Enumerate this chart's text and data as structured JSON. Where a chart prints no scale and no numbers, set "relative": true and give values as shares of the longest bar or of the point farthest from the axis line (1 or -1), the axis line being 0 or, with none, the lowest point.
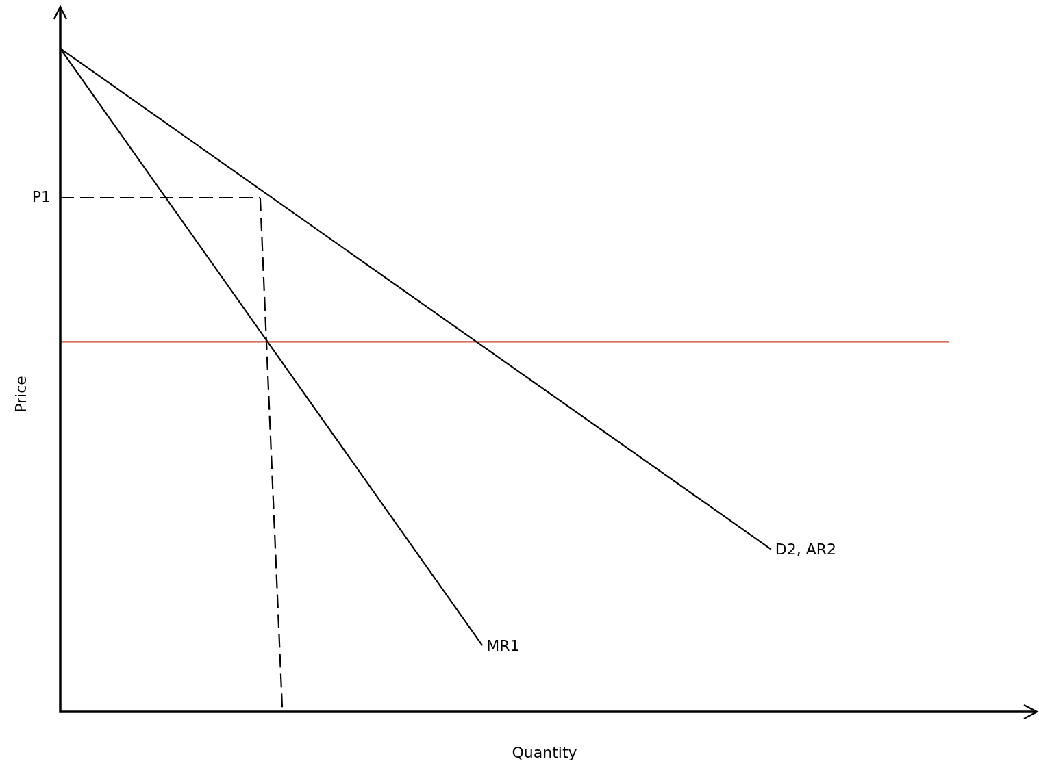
{
  "chart_data": {
    "type": "line",
    "relative": true,
    "xlabel": "Quantity",
    "ylabel": "Price",
    "grid": false,
    "legend": false,
    "marker": "none",
    "annotations": [
      "P1"
    ],
    "categories": [
      null,
      null,
      null,
      null,
      null,
      null,
      null,
      null,
      null,
      null,
      null,
      null,
      null,
      null,
      null,
      null,
      null,
      null,
      null,
      null,
      null,
      null,
      null,
      null,
      null,
      null,
      null,
      null,
      null,
      null,
      null,
      null,
      null,
      null,
      null,
      null,
      null,
      null,
      null,
      null,
      null
    ],
    "series": [
      {
        "name": "D2, AR2",
        "color": "#000000",
        "line_style": "solid",
        "values": [
          1,
          null,
          null,
          null,
          null,
          null,
          null,
          null,
          null,
          null,
          null,
          null,
          null,
          null,
          null,
          null,
          null,
          null,
          null,
          null,
          null,
          null,
          null,
          null,
          null,
          null,
          null,
          null,
          null,
          null,
          null,
          null,
          0.245,
          null,
          null,
          null,
          null,
          null,
          null,
          null,
          null
        ]
      },
      {
        "name": "MR1",
        "color": "#000000",
        "line_style": "solid",
        "values": [
          1,
          null,
          null,
          null,
          null,
          null,
          null,
          null,
          null,
          null,
          null,
          null,
          null,
          null,
          null,
          null,
          null,
          null,
          null,
          0.1,
          null,
          null,
          null,
          null,
          null,
          null,
          null,
          null,
          null,
          null,
          null,
          null,
          null,
          null,
          null,
          null,
          null,
          null,
          null,
          null,
          null
        ]
      },
      {
        "color": "#c8462a",
        "line_style": "solid",
        "values": [
          0.558,
          null,
          null,
          null,
          null,
          null,
          null,
          null,
          null,
          null,
          null,
          null,
          null,
          null,
          null,
          null,
          null,
          null,
          null,
          null,
          null,
          null,
          null,
          null,
          null,
          null,
          null,
          null,
          null,
          null,
          null,
          null,
          null,
          null,
          null,
          null,
          null,
          null,
          null,
          null,
          0.558
        ]
      },
      {
        "color": "#000000",
        "line_style": "dashed",
        "values": [
          0.775,
          null,
          null,
          null,
          null,
          null,
          null,
          null,
          null,
          0.775,
          null,
          null,
          null,
          null,
          null,
          null,
          null,
          null,
          null,
          null,
          null,
          null,
          null,
          null,
          null,
          null,
          null,
          null,
          null,
          null,
          null,
          null,
          null,
          null,
          null,
          null,
          null,
          null,
          null,
          null,
          null
        ]
      },
      {
        "color": "#000000",
        "line_style": "dashed",
        "values": [
          null,
          null,
          null,
          null,
          null,
          null,
          null,
          null,
          null,
          0.775,
          0,
          null,
          null,
          null,
          null,
          null,
          null,
          null,
          null,
          null,
          null,
          null,
          null,
          null,
          null,
          null,
          null,
          null,
          null,
          null,
          null,
          null,
          null,
          null,
          null,
          null,
          null,
          null,
          null,
          null,
          null
        ]
      }
    ]
  }
}
